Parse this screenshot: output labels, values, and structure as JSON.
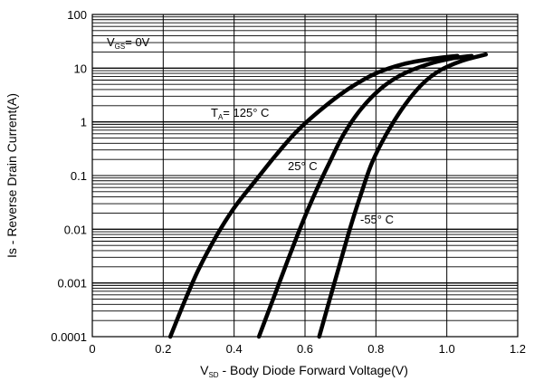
{
  "chart_data": {
    "type": "line",
    "title": "",
    "xlabel": {
      "prefix": "V",
      "sub": "SD",
      "rest": " - Body Diode Forward Voltage(V)"
    },
    "ylabel": "Is - Reverse Drain Current(A)",
    "x_scale": "linear",
    "y_scale": "log",
    "xlim": [
      0,
      1.2
    ],
    "ylim": [
      0.0001,
      100
    ],
    "x_ticks": [
      "0",
      "0.2",
      "0.4",
      "0.6",
      "0.8",
      "1.0",
      "1.2"
    ],
    "y_ticks": [
      "0.0001",
      "0.001",
      "0.01",
      "0.1",
      "1",
      "10",
      "100"
    ],
    "grid": true,
    "annotations": {
      "condition": {
        "prefix": "V",
        "sub": "GS",
        "rest": "= 0V"
      },
      "t125": {
        "prefix": "T",
        "sub": "A",
        "rest": "= 125° C"
      },
      "t25": "25° C",
      "tm55": "-55° C"
    },
    "series": [
      {
        "x": [
          0.22,
          0.26,
          0.3,
          0.35,
          0.4,
          0.46,
          0.52,
          0.58,
          0.65,
          0.72,
          0.8,
          0.88,
          0.96,
          1.03
        ],
        "y": [
          0.0001,
          0.00045,
          0.0018,
          0.0075,
          0.025,
          0.08,
          0.25,
          0.7,
          1.8,
          4.0,
          8.0,
          12.0,
          15.0,
          17.0
        ]
      },
      {
        "x": [
          0.47,
          0.51,
          0.55,
          0.59,
          0.63,
          0.67,
          0.71,
          0.76,
          0.82,
          0.88,
          0.95,
          1.01,
          1.07
        ],
        "y": [
          0.0001,
          0.0005,
          0.0025,
          0.012,
          0.05,
          0.18,
          0.6,
          1.8,
          4.5,
          8.0,
          12.0,
          15.0,
          17.0
        ]
      },
      {
        "x": [
          0.64,
          0.67,
          0.7,
          0.73,
          0.76,
          0.79,
          0.83,
          0.88,
          0.93,
          0.98,
          1.04,
          1.11
        ],
        "y": [
          0.0001,
          0.0005,
          0.0025,
          0.012,
          0.05,
          0.18,
          0.6,
          2.0,
          5.0,
          9.0,
          13.5,
          18.0
        ]
      }
    ],
    "colors": {
      "grid": "#000000",
      "curve": "#000000",
      "background": "#ffffff"
    }
  }
}
